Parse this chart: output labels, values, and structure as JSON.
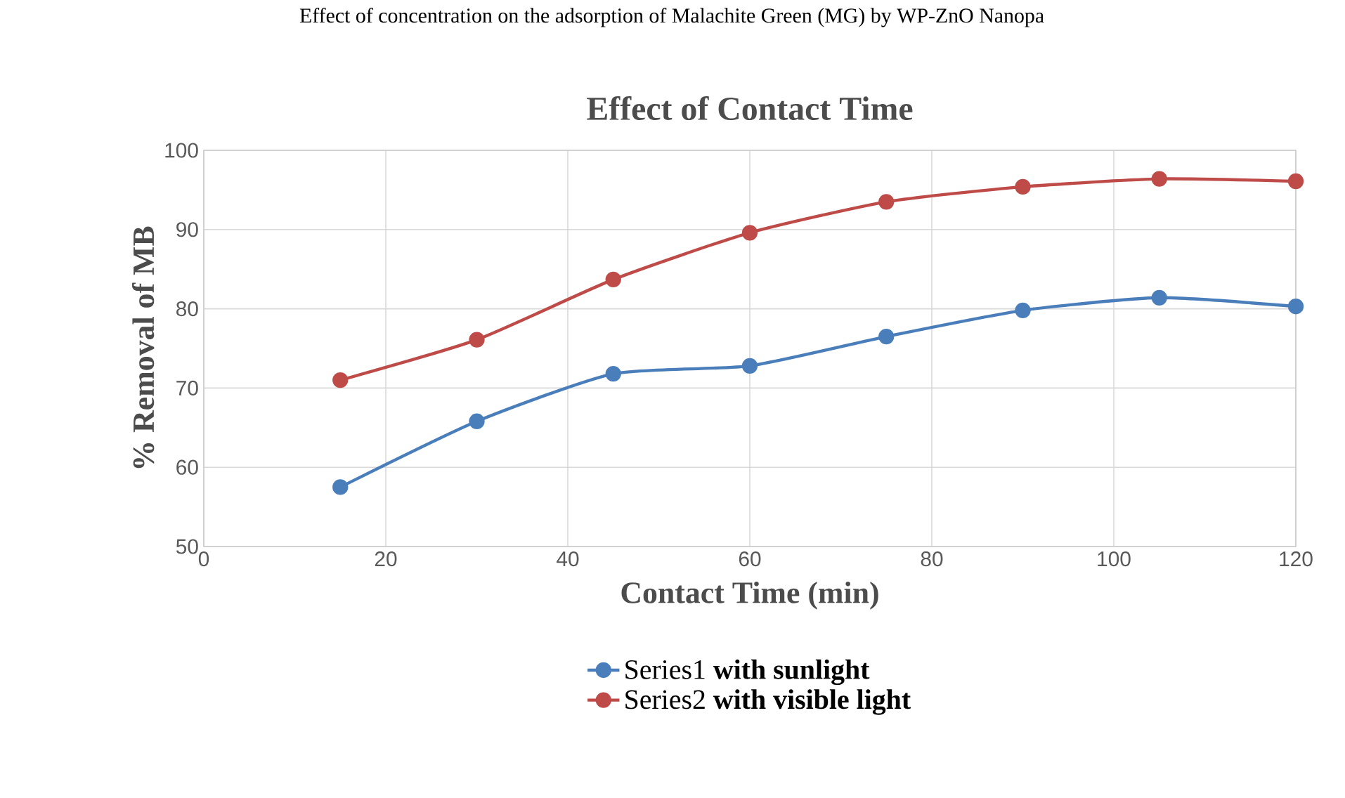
{
  "chart_data": {
    "type": "line",
    "title": "Effect of Contact Time",
    "xlabel": "Contact Time (min)",
    "ylabel": "% Removal of MB",
    "annotations": [
      "Effect of concentration on the adsorption of Malachite Green (MG) by WP-ZnO Nanopa"
    ],
    "x": [
      15,
      30,
      45,
      60,
      75,
      90,
      105,
      120
    ],
    "series": [
      {
        "name": "Series1 **with sunlight**",
        "color": "#4a7ebb",
        "values": [
          57.5,
          65.8,
          71.8,
          72.8,
          76.5,
          79.8,
          81.4,
          80.3
        ]
      },
      {
        "name": "Series2 **with visible light**",
        "color": "#be4b48",
        "values": [
          71.0,
          76.1,
          83.7,
          89.6,
          93.5,
          95.4,
          96.4,
          96.1
        ]
      }
    ],
    "xlim": [
      0,
      120
    ],
    "xticks": [
      0,
      20,
      40,
      60,
      80,
      100,
      120
    ],
    "ylim": [
      50,
      100
    ],
    "yticks": [
      50,
      60,
      70,
      80,
      90,
      100
    ],
    "grid": true,
    "legend": "bottom",
    "marker": "circle",
    "line_style": "solid"
  }
}
